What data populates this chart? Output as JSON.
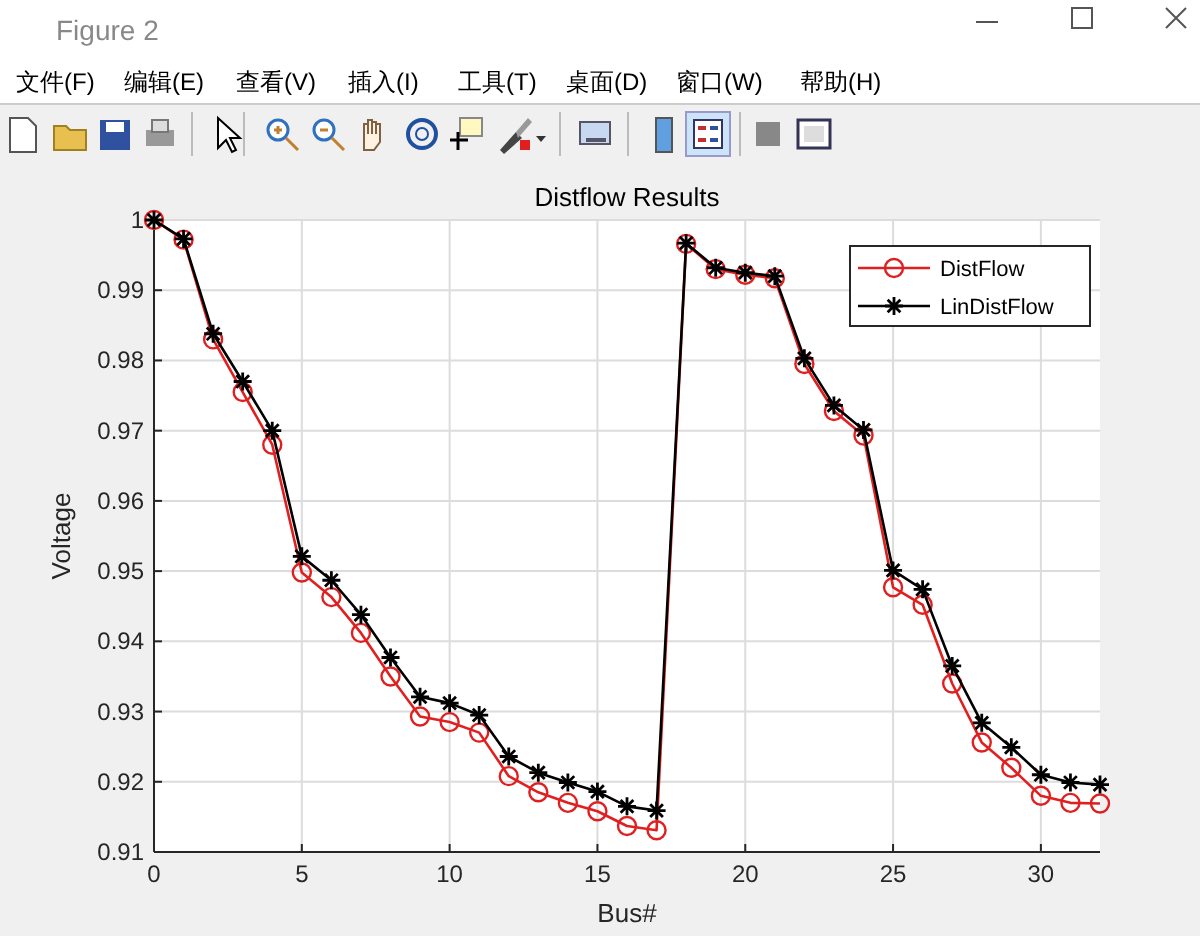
{
  "chart_data": {
    "type": "line",
    "title": "Distflow Results",
    "xlabel": "Bus#",
    "ylabel": "Voltage",
    "annotations": [
      "Figure 2",
      "文件(F)",
      "编辑(E)",
      "查看(V)",
      "插入(I)",
      "工具(T)",
      "桌面(D)",
      "窗口(W)",
      "帮助(H)"
    ],
    "x": [
      0,
      1,
      2,
      3,
      4,
      5,
      6,
      7,
      8,
      9,
      10,
      11,
      12,
      13,
      14,
      15,
      16,
      17,
      18,
      19,
      20,
      21,
      22,
      23,
      24,
      25,
      26,
      27,
      28,
      29,
      30,
      31,
      32
    ],
    "series": [
      {
        "name": "DistFlow",
        "color": "#e02020",
        "marker": "circle",
        "values": [
          1.0,
          0.9972,
          0.983,
          0.9755,
          0.968,
          0.9498,
          0.9463,
          0.9412,
          0.935,
          0.9293,
          0.9285,
          0.927,
          0.9208,
          0.9185,
          0.917,
          0.9158,
          0.9137,
          0.9131,
          0.9966,
          0.993,
          0.9922,
          0.9917,
          0.9795,
          0.9728,
          0.9693,
          0.9477,
          0.9452,
          0.934,
          0.9256,
          0.922,
          0.918,
          0.917,
          0.9169
        ]
      },
      {
        "name": "LinDistFlow",
        "color": "#000000",
        "marker": "cross",
        "values": [
          1.0,
          0.9973,
          0.9838,
          0.977,
          0.97,
          0.9521,
          0.9487,
          0.9438,
          0.9377,
          0.9321,
          0.9312,
          0.9295,
          0.9236,
          0.9213,
          0.9199,
          0.9186,
          0.9165,
          0.9159,
          0.9967,
          0.9932,
          0.9925,
          0.992,
          0.9803,
          0.9736,
          0.9701,
          0.9501,
          0.9474,
          0.9365,
          0.9284,
          0.9249,
          0.921,
          0.9199,
          0.9196
        ]
      }
    ],
    "xlim": [
      0,
      32
    ],
    "xticks": [
      0,
      5,
      10,
      15,
      20,
      25,
      30
    ],
    "ylim": [
      0.91,
      1
    ],
    "yticks": [
      0.91,
      0.92,
      0.93,
      0.94,
      0.95,
      0.96,
      0.97,
      0.98,
      0.99,
      1
    ],
    "grid": true,
    "legend": "top right",
    "line_style": "solid"
  }
}
